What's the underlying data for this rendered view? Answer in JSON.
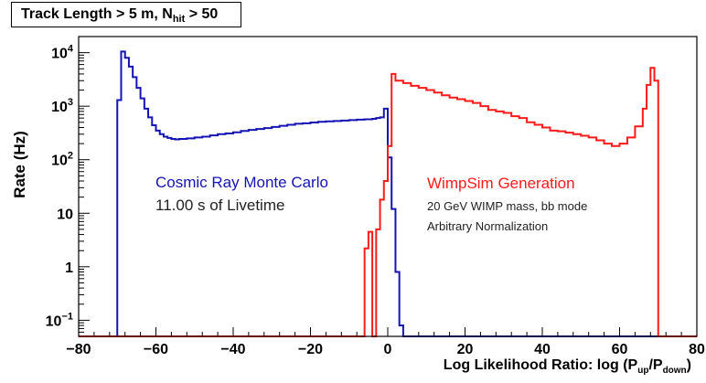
{
  "colors": {
    "cosmic": "#1414b4",
    "wimp": "#ff1a1a",
    "axis": "#000000"
  },
  "title": {
    "main": "Track Length > 5 m, N",
    "sub": "hit",
    "suffix": " > 50"
  },
  "annotations": {
    "cosmic_title": "Cosmic Ray Monte Carlo",
    "cosmic_livetime": "11.00 s of Livetime",
    "wimp_title": "WimpSim Generation",
    "wimp_mass": "20 GeV WIMP mass, bb mode",
    "wimp_norm": "Arbitrary Normalization"
  },
  "axes": {
    "ylabel": "Rate (Hz)",
    "xlabel_prefix": "Log Likelihood Ratio: log (P",
    "xlabel_sub1": "up",
    "xlabel_mid": "/P",
    "xlabel_sub2": "down",
    "xlabel_suffix": ")"
  },
  "chart_data": {
    "type": "line",
    "subtype": "step-histogram",
    "xlim": [
      -80,
      80
    ],
    "ylim": [
      0.05,
      20000
    ],
    "yscale": "log",
    "grid": false,
    "x_ticks": [
      -80,
      -60,
      -40,
      -20,
      0,
      20,
      40,
      60,
      80
    ],
    "x_tick_labels": [
      "−80",
      "−60",
      "−40",
      "−20",
      "0",
      "20",
      "40",
      "60",
      "80"
    ],
    "y_ticks": [
      {
        "value": 0.1,
        "base": "10",
        "exp": "−1"
      },
      {
        "value": 1,
        "base": "1",
        "exp": ""
      },
      {
        "value": 10,
        "base": "10",
        "exp": ""
      },
      {
        "value": 100,
        "base": "10",
        "exp": "2"
      },
      {
        "value": 1000,
        "base": "10",
        "exp": "3"
      },
      {
        "value": 10000,
        "base": "10",
        "exp": "4"
      }
    ],
    "series": [
      {
        "name": "Cosmic Ray Monte Carlo",
        "color": "#1414b4",
        "x": [
          -70,
          -69,
          -68,
          -67,
          -66,
          -65,
          -64,
          -63,
          -62,
          -61,
          -60,
          -59,
          -58,
          -57,
          -56,
          -55,
          -54,
          -52,
          -50,
          -48,
          -46,
          -44,
          -42,
          -40,
          -38,
          -36,
          -34,
          -32,
          -30,
          -28,
          -26,
          -24,
          -22,
          -20,
          -18,
          -16,
          -14,
          -12,
          -10,
          -8,
          -6,
          -4,
          -3,
          -2,
          -1,
          0,
          1,
          2,
          3,
          4
        ],
        "values": [
          1300,
          10500,
          8000,
          5500,
          3500,
          2200,
          1400,
          900,
          620,
          440,
          350,
          300,
          270,
          255,
          245,
          240,
          245,
          250,
          260,
          270,
          285,
          300,
          310,
          325,
          345,
          360,
          375,
          390,
          410,
          430,
          450,
          470,
          480,
          495,
          510,
          520,
          530,
          540,
          550,
          560,
          570,
          580,
          600,
          620,
          900,
          110,
          12,
          0.8,
          0.08,
          0.05
        ]
      },
      {
        "name": "WimpSim Generation",
        "color": "#ff1a1a",
        "x": [
          -6,
          -5,
          -4,
          -3,
          -2,
          -1,
          0,
          1,
          2,
          4,
          6,
          8,
          10,
          12,
          14,
          16,
          18,
          20,
          22,
          24,
          26,
          28,
          30,
          32,
          34,
          36,
          38,
          40,
          42,
          44,
          46,
          48,
          50,
          52,
          54,
          56,
          58,
          60,
          62,
          64,
          66,
          67,
          68,
          69,
          70
        ],
        "values": [
          2.2,
          4.5,
          0.05,
          5,
          18,
          40,
          180,
          4000,
          3000,
          2700,
          2400,
          2200,
          2000,
          1800,
          1600,
          1450,
          1350,
          1250,
          1150,
          1000,
          850,
          800,
          750,
          650,
          600,
          500,
          450,
          400,
          350,
          340,
          320,
          300,
          280,
          260,
          230,
          200,
          180,
          200,
          260,
          420,
          900,
          2500,
          5200,
          3000,
          0.05
        ]
      }
    ]
  }
}
